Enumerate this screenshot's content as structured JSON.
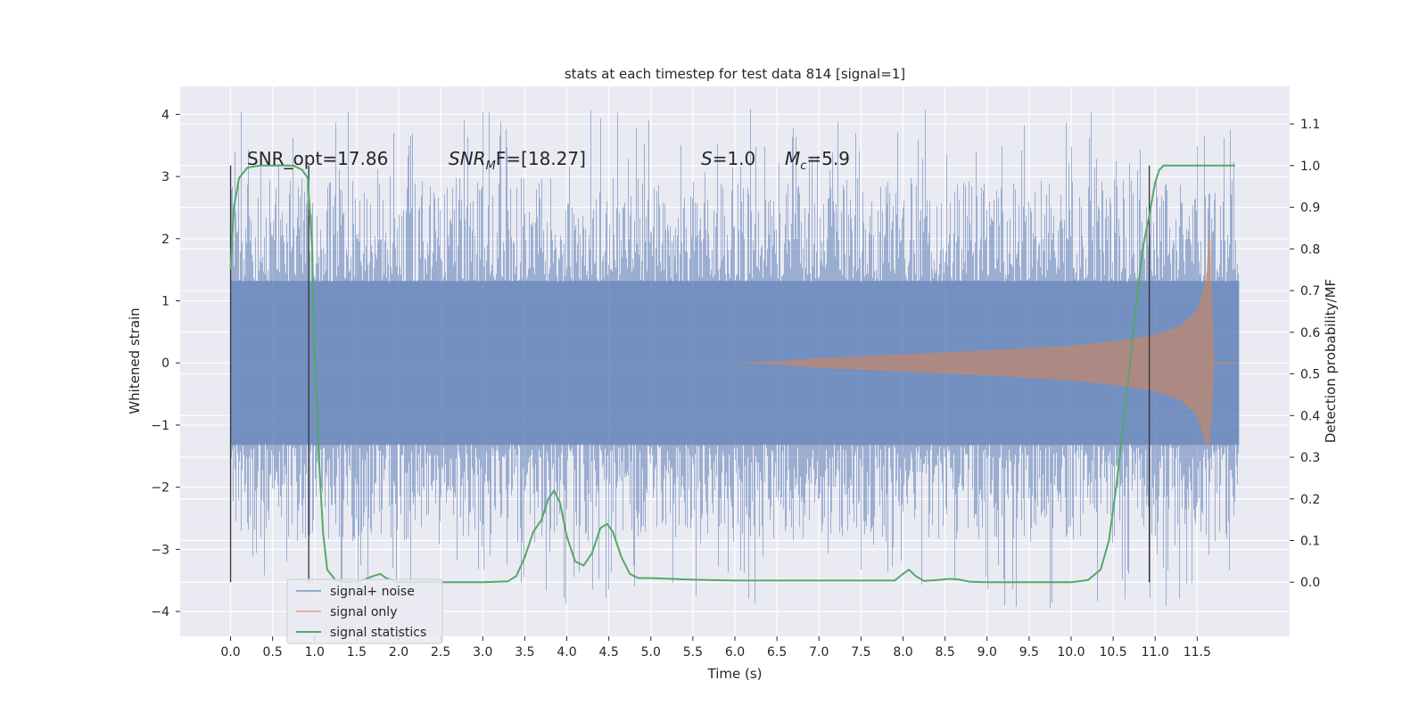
{
  "chart_data": {
    "type": "line",
    "title": "stats at each timestep for test data 814 [signal=1]",
    "xlabel": "Time (s)",
    "ylabel": "Whitened strain",
    "y2label": "Detection probability/MF",
    "xlim": [
      -0.6,
      12.6
    ],
    "ylim": [
      -4.4,
      4.45
    ],
    "y2lim": [
      -0.13,
      1.19
    ],
    "x_ticks": [
      "0.0",
      "0.5",
      "1.0",
      "1.5",
      "2.0",
      "2.5",
      "3.0",
      "3.5",
      "4.0",
      "4.5",
      "5.0",
      "5.5",
      "6.0",
      "6.5",
      "7.0",
      "7.5",
      "8.0",
      "8.5",
      "9.0",
      "9.5",
      "10.0",
      "10.5",
      "11.0",
      "11.5"
    ],
    "y_ticks": [
      -4,
      -3,
      -2,
      -1,
      0,
      1,
      2,
      3,
      4
    ],
    "y2_ticks": [
      "0.0",
      "0.1",
      "0.2",
      "0.3",
      "0.4",
      "0.5",
      "0.6",
      "0.7",
      "0.8",
      "0.9",
      "1.0",
      "1.1"
    ],
    "grid": true,
    "legend_position": "lower-left",
    "annotations": {
      "snr_opt": "SNR_opt=17.86",
      "snr_mf_sym": "SNR",
      "snr_mf_sub": "M",
      "snr_mf_rest": "F=[18.27]",
      "s_sym": "S",
      "s_rest": "=1.0",
      "mc_sym": "M",
      "mc_sub": "c",
      "mc_rest": "=5.9"
    },
    "vertical_markers": [
      0.0,
      0.93,
      10.93
    ],
    "series": [
      {
        "name": "signal+ noise",
        "color": "#4c72b0",
        "noise_envelope": {
          "x": [
            0.0,
            12.0
          ],
          "typical_range": [
            -1.9,
            1.9
          ],
          "extreme_range": [
            -3.95,
            4.1
          ]
        }
      },
      {
        "name": "signal only",
        "color": "#dd8452",
        "x": [
          0.0,
          6.0,
          6.5,
          7.0,
          8.0,
          9.0,
          10.0,
          10.5,
          11.0,
          11.3,
          11.5,
          11.6,
          11.65,
          11.7
        ],
        "amplitude": [
          0.0,
          0.0,
          0.03,
          0.08,
          0.14,
          0.2,
          0.28,
          0.35,
          0.45,
          0.6,
          0.85,
          1.3,
          2.25,
          0.1
        ]
      },
      {
        "name": "signal statistics",
        "color": "#55a868",
        "x": [
          0.0,
          0.04,
          0.1,
          0.2,
          0.35,
          0.55,
          0.75,
          0.85,
          0.92,
          0.97,
          1.0,
          1.05,
          1.1,
          1.15,
          1.25,
          1.4,
          1.55,
          1.7,
          1.78,
          1.85,
          2.0,
          2.5,
          3.0,
          3.3,
          3.4,
          3.5,
          3.6,
          3.7,
          3.78,
          3.85,
          3.92,
          4.0,
          4.1,
          4.2,
          4.3,
          4.4,
          4.48,
          4.55,
          4.65,
          4.75,
          4.85,
          5.0,
          5.5,
          6.0,
          6.5,
          7.0,
          7.5,
          7.9,
          8.0,
          8.07,
          8.15,
          8.25,
          8.4,
          8.55,
          8.65,
          8.8,
          9.0,
          9.5,
          10.0,
          10.2,
          10.35,
          10.45,
          10.55,
          10.65,
          10.75,
          10.85,
          10.93,
          11.0,
          11.05,
          11.1,
          11.2,
          11.4,
          11.6,
          11.8,
          11.95
        ],
        "values": [
          0.75,
          0.9,
          0.97,
          0.995,
          1.0,
          1.0,
          1.0,
          0.99,
          0.97,
          0.8,
          0.55,
          0.3,
          0.12,
          0.03,
          0.005,
          0.0,
          0.003,
          0.015,
          0.02,
          0.01,
          0.0,
          0.0,
          0.0,
          0.002,
          0.015,
          0.06,
          0.12,
          0.15,
          0.2,
          0.22,
          0.19,
          0.11,
          0.05,
          0.04,
          0.07,
          0.13,
          0.14,
          0.12,
          0.06,
          0.02,
          0.01,
          0.01,
          0.006,
          0.004,
          0.004,
          0.004,
          0.004,
          0.004,
          0.02,
          0.03,
          0.015,
          0.003,
          0.005,
          0.008,
          0.007,
          0.001,
          0.0,
          0.0,
          0.0,
          0.005,
          0.03,
          0.1,
          0.25,
          0.43,
          0.62,
          0.8,
          0.88,
          0.96,
          0.99,
          1.0,
          1.0,
          1.0,
          1.0,
          1.0,
          1.0
        ]
      }
    ]
  }
}
